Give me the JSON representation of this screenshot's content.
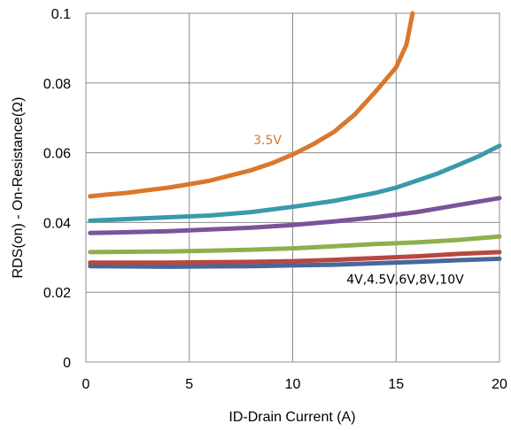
{
  "chart_data": {
    "type": "line",
    "title": "",
    "xlabel": "ID-Drain Current (A)",
    "ylabel": "RDS(on) - On-Resistance(Ω)",
    "xlim": [
      0,
      20
    ],
    "ylim": [
      0,
      0.1
    ],
    "x_ticks": [
      "0",
      "5",
      "10",
      "15",
      "20"
    ],
    "y_ticks": [
      "0",
      "0.02",
      "0.04",
      "0.06",
      "0.08",
      "0.1"
    ],
    "grid": true,
    "legend": "none",
    "annotations": [
      {
        "text": "3.5V",
        "x": 8.1,
        "y": 0.0625,
        "color": "#d9782d"
      },
      {
        "text": "4V,4.5V,6V,8V,10V",
        "x": 12.6,
        "y": 0.0225,
        "color": "#000000"
      }
    ],
    "series": [
      {
        "color": "#d9782d",
        "points": [
          [
            0.2,
            0.0475
          ],
          [
            1,
            0.048
          ],
          [
            2,
            0.0485
          ],
          [
            3,
            0.0493
          ],
          [
            4,
            0.05
          ],
          [
            5,
            0.051
          ],
          [
            6,
            0.052
          ],
          [
            7,
            0.0535
          ],
          [
            8,
            0.055
          ],
          [
            9,
            0.057
          ],
          [
            10,
            0.0595
          ],
          [
            11,
            0.0625
          ],
          [
            12,
            0.066
          ],
          [
            13,
            0.071
          ],
          [
            14,
            0.0775
          ],
          [
            15,
            0.0845
          ],
          [
            15.5,
            0.091
          ],
          [
            15.8,
            0.1
          ]
        ]
      },
      {
        "color": "#3a9aab",
        "points": [
          [
            0.2,
            0.0405
          ],
          [
            2,
            0.041
          ],
          [
            4,
            0.0415
          ],
          [
            6,
            0.042
          ],
          [
            8,
            0.043
          ],
          [
            10,
            0.0445
          ],
          [
            12,
            0.0462
          ],
          [
            14,
            0.0485
          ],
          [
            15,
            0.05
          ],
          [
            16,
            0.052
          ],
          [
            17,
            0.054
          ],
          [
            18,
            0.0565
          ],
          [
            19,
            0.059
          ],
          [
            20,
            0.062
          ]
        ]
      },
      {
        "color": "#7a549b",
        "points": [
          [
            0.2,
            0.037
          ],
          [
            2,
            0.0372
          ],
          [
            4,
            0.0375
          ],
          [
            6,
            0.038
          ],
          [
            8,
            0.0385
          ],
          [
            10,
            0.0393
          ],
          [
            12,
            0.0403
          ],
          [
            14,
            0.0415
          ],
          [
            16,
            0.043
          ],
          [
            18,
            0.045
          ],
          [
            20,
            0.047
          ]
        ]
      },
      {
        "color": "#8db04c",
        "points": [
          [
            0.2,
            0.0315
          ],
          [
            2,
            0.0316
          ],
          [
            4,
            0.0317
          ],
          [
            6,
            0.0319
          ],
          [
            8,
            0.0322
          ],
          [
            10,
            0.0326
          ],
          [
            12,
            0.0332
          ],
          [
            14,
            0.0338
          ],
          [
            16,
            0.0343
          ],
          [
            18,
            0.035
          ],
          [
            20,
            0.036
          ]
        ]
      },
      {
        "color": "#b9473f",
        "points": [
          [
            0.2,
            0.0285
          ],
          [
            2,
            0.0285
          ],
          [
            4,
            0.0285
          ],
          [
            6,
            0.0286
          ],
          [
            8,
            0.0287
          ],
          [
            10,
            0.0289
          ],
          [
            12,
            0.0293
          ],
          [
            14,
            0.0298
          ],
          [
            16,
            0.0303
          ],
          [
            18,
            0.031
          ],
          [
            20,
            0.0315
          ]
        ]
      },
      {
        "color": "#48679a",
        "points": [
          [
            0.2,
            0.0275
          ],
          [
            2,
            0.0274
          ],
          [
            4,
            0.0273
          ],
          [
            6,
            0.0274
          ],
          [
            8,
            0.0275
          ],
          [
            10,
            0.0277
          ],
          [
            12,
            0.0279
          ],
          [
            14,
            0.0283
          ],
          [
            16,
            0.0287
          ],
          [
            18,
            0.0292
          ],
          [
            20,
            0.0296
          ]
        ]
      }
    ]
  }
}
